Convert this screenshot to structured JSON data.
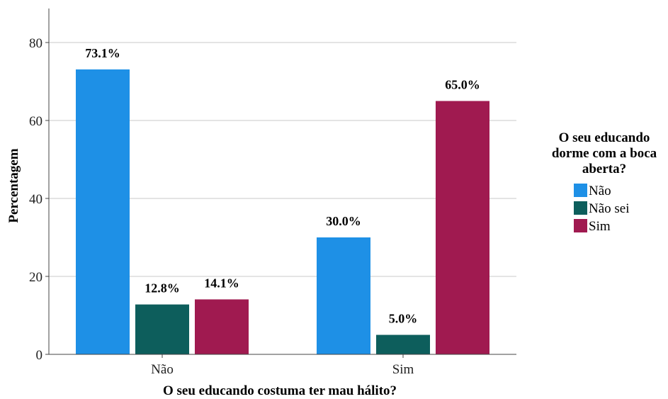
{
  "chart_data": {
    "type": "bar",
    "title": "",
    "xlabel": "O seu educando costuma ter mau hálito?",
    "ylabel": "Percentagem",
    "categories": [
      "Não",
      "Sim"
    ],
    "series": [
      {
        "name": "Não",
        "color": "#1e90e6",
        "values": [
          73.1,
          30.0
        ],
        "labels": [
          "73.1%",
          "30.0%"
        ]
      },
      {
        "name": "Não sei",
        "color": "#0d5e5c",
        "values": [
          12.8,
          5.0
        ],
        "labels": [
          "12.8%",
          "5.0%"
        ]
      },
      {
        "name": "Sim",
        "color": "#a01a50",
        "values": [
          14.1,
          65.0
        ],
        "labels": [
          "14.1%",
          "65.0%"
        ]
      }
    ],
    "ylim": [
      0,
      88
    ],
    "yticks": [
      0,
      20,
      40,
      60,
      80
    ],
    "ytick_labels": [
      "0",
      "20",
      "40",
      "60",
      "80"
    ],
    "grid": true,
    "legend": {
      "title_lines": [
        "O seu educando",
        "dorme com a boca",
        "aberta?"
      ],
      "placement": "right"
    }
  }
}
